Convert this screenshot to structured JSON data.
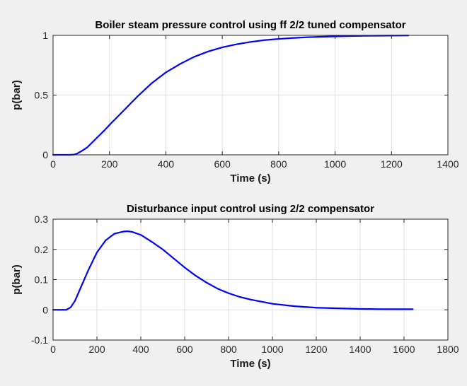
{
  "chart_data": [
    {
      "type": "line",
      "title": "Boiler steam pressure control using ff 2/2 tuned compensator",
      "xlabel": "Time (s)",
      "ylabel": "p(bar)",
      "xlim": [
        0,
        1400
      ],
      "ylim": [
        0,
        1
      ],
      "xticks": [
        0,
        200,
        400,
        600,
        800,
        1000,
        1200,
        1400
      ],
      "yticks": [
        0,
        0.5,
        1
      ],
      "xtick_labels": [
        "0",
        "200",
        "400",
        "600",
        "800",
        "1000",
        "1200",
        "1400"
      ],
      "ytick_labels": [
        "0",
        "0.5",
        "1"
      ],
      "grid": true,
      "line_color": "#0000ff",
      "series": [
        {
          "x": [
            0,
            20,
            40,
            60,
            75,
            85,
            100,
            120,
            150,
            180,
            200,
            250,
            300,
            350,
            400,
            450,
            500,
            550,
            600,
            650,
            700,
            750,
            800,
            850,
            900,
            950,
            1000,
            1050,
            1100,
            1150,
            1200,
            1260
          ],
          "y": [
            0.0,
            0.0,
            0.0,
            0.0,
            0.002,
            0.01,
            0.03,
            0.06,
            0.13,
            0.2,
            0.25,
            0.37,
            0.49,
            0.6,
            0.69,
            0.76,
            0.82,
            0.865,
            0.9,
            0.925,
            0.945,
            0.96,
            0.97,
            0.978,
            0.984,
            0.988,
            0.991,
            0.994,
            0.996,
            0.997,
            0.998,
            0.999
          ]
        }
      ]
    },
    {
      "type": "line",
      "title": "Disturbance input control using 2/2 compensator",
      "xlabel": "Time (s)",
      "ylabel": "p(bar)",
      "xlim": [
        0,
        1800
      ],
      "ylim": [
        -0.1,
        0.3
      ],
      "xticks": [
        0,
        200,
        400,
        600,
        800,
        1000,
        1200,
        1400,
        1600,
        1800
      ],
      "yticks": [
        -0.1,
        0,
        0.1,
        0.2,
        0.3
      ],
      "xtick_labels": [
        "0",
        "200",
        "400",
        "600",
        "800",
        "1000",
        "1200",
        "1400",
        "1600",
        "1800"
      ],
      "ytick_labels": [
        "-0.1",
        "0",
        "0.1",
        "0.2",
        "0.3"
      ],
      "grid": true,
      "line_color": "#0000ff",
      "series": [
        {
          "x": [
            0,
            30,
            60,
            80,
            100,
            130,
            160,
            200,
            240,
            280,
            320,
            340,
            360,
            400,
            450,
            500,
            550,
            600,
            650,
            700,
            750,
            800,
            850,
            900,
            1000,
            1100,
            1200,
            1300,
            1400,
            1500,
            1640
          ],
          "y": [
            0.0,
            0.0,
            0.0,
            0.008,
            0.03,
            0.08,
            0.13,
            0.19,
            0.23,
            0.252,
            0.259,
            0.26,
            0.258,
            0.248,
            0.225,
            0.2,
            0.17,
            0.14,
            0.113,
            0.09,
            0.07,
            0.055,
            0.043,
            0.034,
            0.02,
            0.012,
            0.007,
            0.005,
            0.003,
            0.002,
            0.002
          ]
        }
      ]
    }
  ]
}
